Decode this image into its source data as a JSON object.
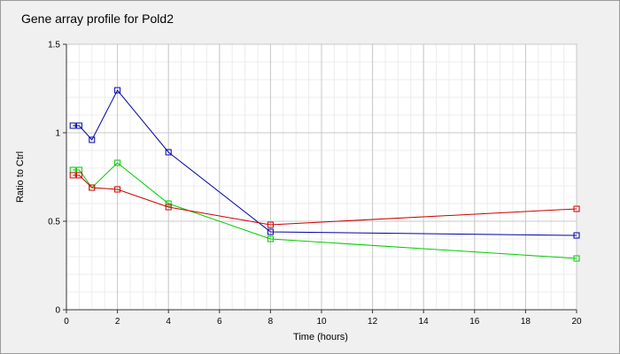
{
  "chart_data": {
    "type": "line",
    "title": "Gene array profile for Pold2",
    "xlabel": "Time (hours)",
    "ylabel": "Ratio to Ctrl",
    "xlim": [
      0,
      20
    ],
    "ylim": [
      0,
      1.5
    ],
    "x_ticks": [
      "0",
      "2",
      "4",
      "6",
      "8",
      "10",
      "12",
      "14",
      "16",
      "18",
      "20"
    ],
    "y_ticks": [
      "0",
      "0.5",
      "1",
      "1.5"
    ],
    "grid": true,
    "series": [
      {
        "color": "#0000aa",
        "x": [
          0.25,
          0.5,
          1,
          2,
          4,
          8,
          20
        ],
        "values": [
          1.04,
          1.04,
          0.96,
          1.24,
          0.89,
          0.44,
          0.42
        ]
      },
      {
        "color": "#00cc00",
        "x": [
          0.25,
          0.5,
          1,
          2,
          4,
          8,
          20
        ],
        "values": [
          0.79,
          0.79,
          0.69,
          0.83,
          0.6,
          0.4,
          0.29
        ]
      },
      {
        "color": "#cc0000",
        "x": [
          0.25,
          0.5,
          1,
          2,
          4,
          8,
          20
        ],
        "values": [
          0.76,
          0.76,
          0.69,
          0.68,
          0.58,
          0.48,
          0.57
        ]
      }
    ]
  }
}
